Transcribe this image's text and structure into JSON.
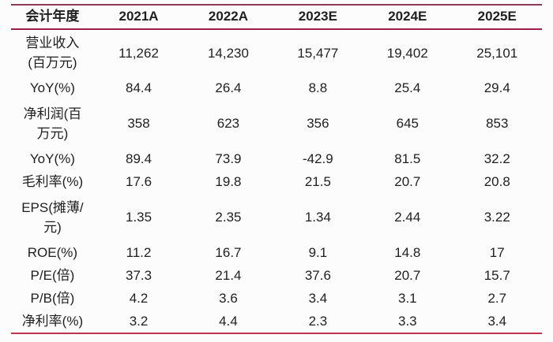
{
  "colors": {
    "top_rule": "#8c3a55",
    "header_rule": "#9b2047",
    "bottom_rule": "#bf3249",
    "text": "#1f1f1f"
  },
  "table": {
    "header": {
      "c0": "会计年度",
      "c1": "2021A",
      "c2": "2022A",
      "c3": "2023E",
      "c4": "2024E",
      "c5": "2025E"
    },
    "rows": [
      {
        "l1": "营业收入",
        "l2": "(百万元)",
        "v1": "11,262",
        "v2": "14,230",
        "v3": "15,477",
        "v4": "19,402",
        "v5": "25,101"
      },
      {
        "l1": "YoY(%)",
        "v1": "84.4",
        "v2": "26.4",
        "v3": "8.8",
        "v4": "25.4",
        "v5": "29.4"
      },
      {
        "l1": "净利润(百",
        "l2": "万元)",
        "v1": "358",
        "v2": "623",
        "v3": "356",
        "v4": "645",
        "v5": "853"
      },
      {
        "l1": "YoY(%)",
        "v1": "89.4",
        "v2": "73.9",
        "v3": "-42.9",
        "v4": "81.5",
        "v5": "32.2"
      },
      {
        "l1": "毛利率(%)",
        "v1": "17.6",
        "v2": "19.8",
        "v3": "21.5",
        "v4": "20.7",
        "v5": "20.8"
      },
      {
        "l1": "EPS(摊薄/",
        "l2": "元)",
        "v1": "1.35",
        "v2": "2.35",
        "v3": "1.34",
        "v4": "2.44",
        "v5": "3.22"
      },
      {
        "l1": "ROE(%)",
        "v1": "11.2",
        "v2": "16.7",
        "v3": "9.1",
        "v4": "14.8",
        "v5": "17"
      },
      {
        "l1": "P/E(倍)",
        "v1": "37.3",
        "v2": "21.4",
        "v3": "37.6",
        "v4": "20.7",
        "v5": "15.7"
      },
      {
        "l1": "P/B(倍)",
        "v1": "4.2",
        "v2": "3.6",
        "v3": "3.4",
        "v4": "3.1",
        "v5": "2.7"
      },
      {
        "l1": "净利率(%)",
        "v1": "3.2",
        "v2": "4.4",
        "v3": "2.3",
        "v4": "3.3",
        "v5": "3.4"
      }
    ]
  },
  "chart_data": {
    "type": "table",
    "title": "",
    "columns": [
      "会计年度",
      "2021A",
      "2022A",
      "2023E",
      "2024E",
      "2025E"
    ],
    "rows": [
      [
        "营业收入(百万元)",
        11262,
        14230,
        15477,
        19402,
        25101
      ],
      [
        "YoY(%)",
        84.4,
        26.4,
        8.8,
        25.4,
        29.4
      ],
      [
        "净利润(百万元)",
        358,
        623,
        356,
        645,
        853
      ],
      [
        "YoY(%)",
        89.4,
        73.9,
        -42.9,
        81.5,
        32.2
      ],
      [
        "毛利率(%)",
        17.6,
        19.8,
        21.5,
        20.7,
        20.8
      ],
      [
        "EPS(摊薄/元)",
        1.35,
        2.35,
        1.34,
        2.44,
        3.22
      ],
      [
        "ROE(%)",
        11.2,
        16.7,
        9.1,
        14.8,
        17
      ],
      [
        "P/E(倍)",
        37.3,
        21.4,
        37.6,
        20.7,
        15.7
      ],
      [
        "P/B(倍)",
        4.2,
        3.6,
        3.4,
        3.1,
        2.7
      ],
      [
        "净利率(%)",
        3.2,
        4.4,
        2.3,
        3.3,
        3.4
      ]
    ]
  }
}
